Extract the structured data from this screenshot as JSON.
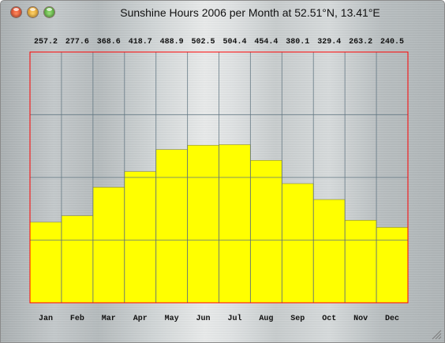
{
  "window": {
    "title": "Sunshine Hours 2006 per Month at 52.51°N, 13.41°E"
  },
  "chart_data": {
    "type": "bar",
    "title": "Sunshine Hours 2006 per Month at 52.51°N, 13.41°E",
    "categories": [
      "Jan",
      "Feb",
      "Mar",
      "Apr",
      "May",
      "Jun",
      "Jul",
      "Aug",
      "Sep",
      "Oct",
      "Nov",
      "Dec"
    ],
    "values": [
      257.2,
      277.6,
      368.6,
      418.7,
      488.9,
      502.5,
      504.4,
      454.4,
      380.1,
      329.4,
      263.2,
      240.5
    ],
    "value_labels": [
      "257.2",
      "277.6",
      "368.6",
      "418.7",
      "488.9",
      "502.5",
      "504.4",
      "454.4",
      "380.1",
      "329.4",
      "263.2",
      "240.5"
    ],
    "xlabel": "",
    "ylabel": "",
    "ylim": [
      0,
      800
    ],
    "grid": true,
    "legend": "none",
    "colors": {
      "bar_fill": "#ffff00",
      "bar_stroke": "#8c8c3c",
      "plot_border": "#ff0000",
      "grid": "#5f7480"
    }
  }
}
